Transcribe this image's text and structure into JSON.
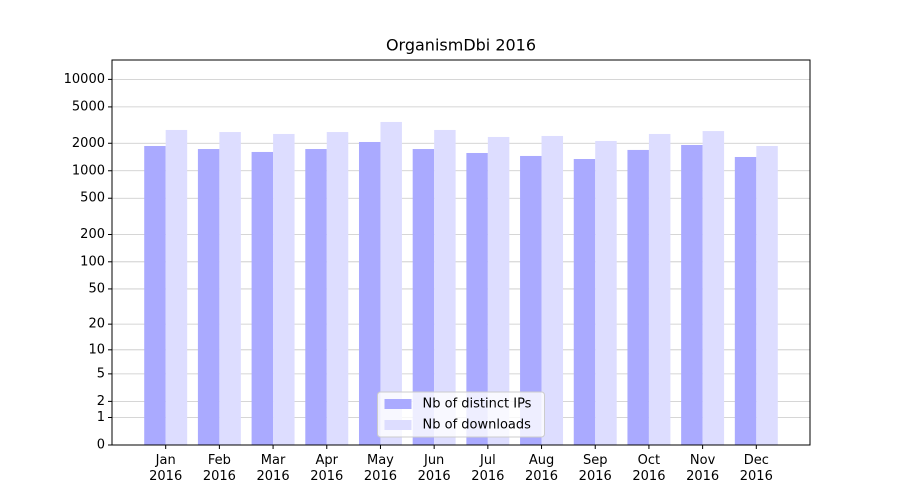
{
  "chart_data": {
    "type": "bar",
    "title": "OrganismDbi 2016",
    "categories": [
      "Jan\n2016",
      "Feb\n2016",
      "Mar\n2016",
      "Apr\n2016",
      "May\n2016",
      "Jun\n2016",
      "Jul\n2016",
      "Aug\n2016",
      "Sep\n2016",
      "Oct\n2016",
      "Nov\n2016",
      "Dec\n2016"
    ],
    "series": [
      {
        "name": "Nb of distinct IPs",
        "color": "#aaaaff",
        "values": [
          1867,
          1730,
          1606,
          1730,
          2065,
          1730,
          1565,
          1452,
          1345,
          1690,
          1915,
          1415
        ]
      },
      {
        "name": "Nb of downloads",
        "color": "#ddddff",
        "values": [
          2795,
          2655,
          2528,
          2655,
          3420,
          2795,
          2343,
          2405,
          2120,
          2528,
          2720,
          1867
        ]
      }
    ],
    "ylim": [
      0,
      16300
    ],
    "yticks": [
      0,
      1,
      2,
      5,
      10,
      20,
      50,
      100,
      200,
      500,
      1000,
      2000,
      5000,
      10000
    ],
    "yscale": "log1p",
    "grid": true,
    "legend": "lower center"
  }
}
